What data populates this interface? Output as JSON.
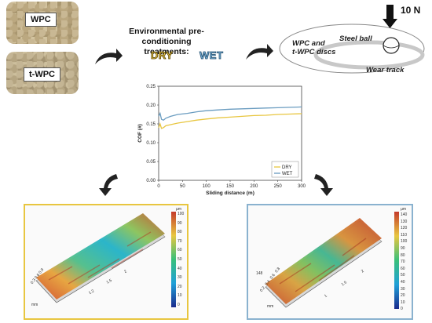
{
  "materials": {
    "wpc_label": "WPC",
    "twpc_label": "t-WPC"
  },
  "environment": {
    "title_line1": "Environmental pre-conditioning",
    "title_line2": "treatments:",
    "dry_label": "DRY",
    "wet_label": "WET",
    "dry_color": "#e4c04a",
    "wet_color": "#7fb6de"
  },
  "test_setup": {
    "force_label": "10 N",
    "ball_label": "Steel ball",
    "disc_label_line1": "WPC and",
    "disc_label_line2": "t-WPC discs",
    "track_label": "Wear track"
  },
  "chart_data": {
    "type": "line",
    "xlabel": "Sliding distance (m)",
    "ylabel": "COF (#)",
    "xlim": [
      0,
      300
    ],
    "ylim": [
      0,
      0.25
    ],
    "xticks": [
      0,
      50,
      100,
      150,
      200,
      250,
      300
    ],
    "yticks": [
      0.0,
      0.05,
      0.1,
      0.15,
      0.2,
      0.25
    ],
    "legend_position": "bottom-right",
    "series": [
      {
        "name": "DRY",
        "color": "#e8c640",
        "x": [
          0,
          3,
          6,
          10,
          15,
          25,
          40,
          60,
          80,
          100,
          125,
          150,
          175,
          200,
          225,
          250,
          275,
          300
        ],
        "y": [
          0.14,
          0.15,
          0.138,
          0.14,
          0.145,
          0.148,
          0.152,
          0.156,
          0.16,
          0.163,
          0.166,
          0.168,
          0.17,
          0.172,
          0.173,
          0.175,
          0.176,
          0.177
        ]
      },
      {
        "name": "WET",
        "color": "#6a9cc0",
        "x": [
          0,
          3,
          6,
          10,
          15,
          25,
          40,
          60,
          80,
          100,
          125,
          150,
          175,
          200,
          225,
          250,
          275,
          300
        ],
        "y": [
          0.17,
          0.178,
          0.162,
          0.16,
          0.165,
          0.17,
          0.175,
          0.178,
          0.182,
          0.185,
          0.187,
          0.189,
          0.19,
          0.191,
          0.192,
          0.193,
          0.194,
          0.195
        ]
      }
    ]
  },
  "maps": {
    "unit": "µm",
    "left": {
      "colorbar_ticks": [
        "100",
        "90",
        "80",
        "70",
        "60",
        "50",
        "40",
        "30",
        "20",
        "10",
        "0"
      ],
      "axis_ticks": [
        "0.3",
        "0.6",
        "0.9",
        "1.2",
        "1.5",
        "2"
      ],
      "axis_unit": "mm",
      "border_color": "#e8c640"
    },
    "right": {
      "colorbar_ticks": [
        "140",
        "130",
        "120",
        "110",
        "100",
        "90",
        "80",
        "70",
        "60",
        "50",
        "40",
        "30",
        "20",
        "10",
        "0"
      ],
      "axis_ticks": [
        "0.2",
        "0.4",
        "0.6",
        "0.8",
        "1",
        "1.5",
        "2"
      ],
      "axis_unit": "mm",
      "height_tick": "148",
      "border_color": "#8ab2cf"
    }
  }
}
